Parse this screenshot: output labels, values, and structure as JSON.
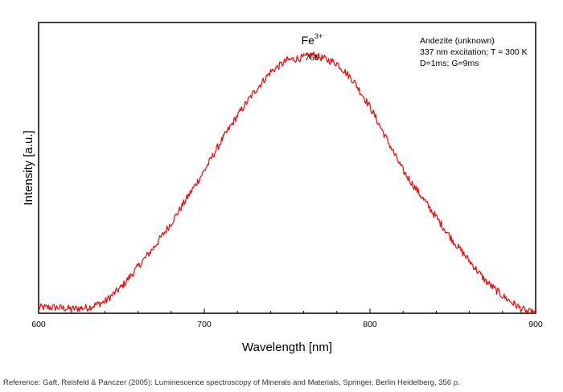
{
  "chart_data": {
    "type": "line",
    "xlabel": "Wavelength [nm]",
    "ylabel": "Intensity [a.u.]",
    "xlim": [
      600,
      900
    ],
    "ylim": [
      0,
      1
    ],
    "xticks": [
      600,
      700,
      800,
      900
    ],
    "yticks_shown": false,
    "grid": false,
    "legend": "none",
    "annotations": {
      "peak_species": "Fe",
      "peak_species_sup": "3+",
      "peak_wavelength": "765",
      "peak_x": 765,
      "info_lines": [
        "Andezite (unknown)",
        "337 nm excitation; T = 300 K",
        "D=1ms; G=9ms"
      ]
    },
    "series": [
      {
        "color": "#ff0000",
        "noise": 0.013,
        "x": [
          600,
          610,
          620,
          630,
          640,
          650,
          660,
          670,
          680,
          690,
          700,
          710,
          720,
          730,
          740,
          750,
          760,
          765,
          770,
          780,
          790,
          800,
          810,
          820,
          830,
          840,
          850,
          860,
          870,
          880,
          890,
          895,
          900
        ],
        "y": [
          0.02,
          0.02,
          0.015,
          0.02,
          0.04,
          0.09,
          0.16,
          0.23,
          0.31,
          0.4,
          0.49,
          0.59,
          0.68,
          0.76,
          0.83,
          0.87,
          0.88,
          0.89,
          0.88,
          0.86,
          0.8,
          0.71,
          0.6,
          0.49,
          0.41,
          0.33,
          0.25,
          0.18,
          0.11,
          0.06,
          0.02,
          0.005,
          0.0
        ]
      }
    ]
  },
  "reference": "Reference: Gaft, Reisfeld & Panczer (2005): Luminescence spectroscopy of Minerals and Materials, Springer, Berlin Heidelberg, 356 p."
}
